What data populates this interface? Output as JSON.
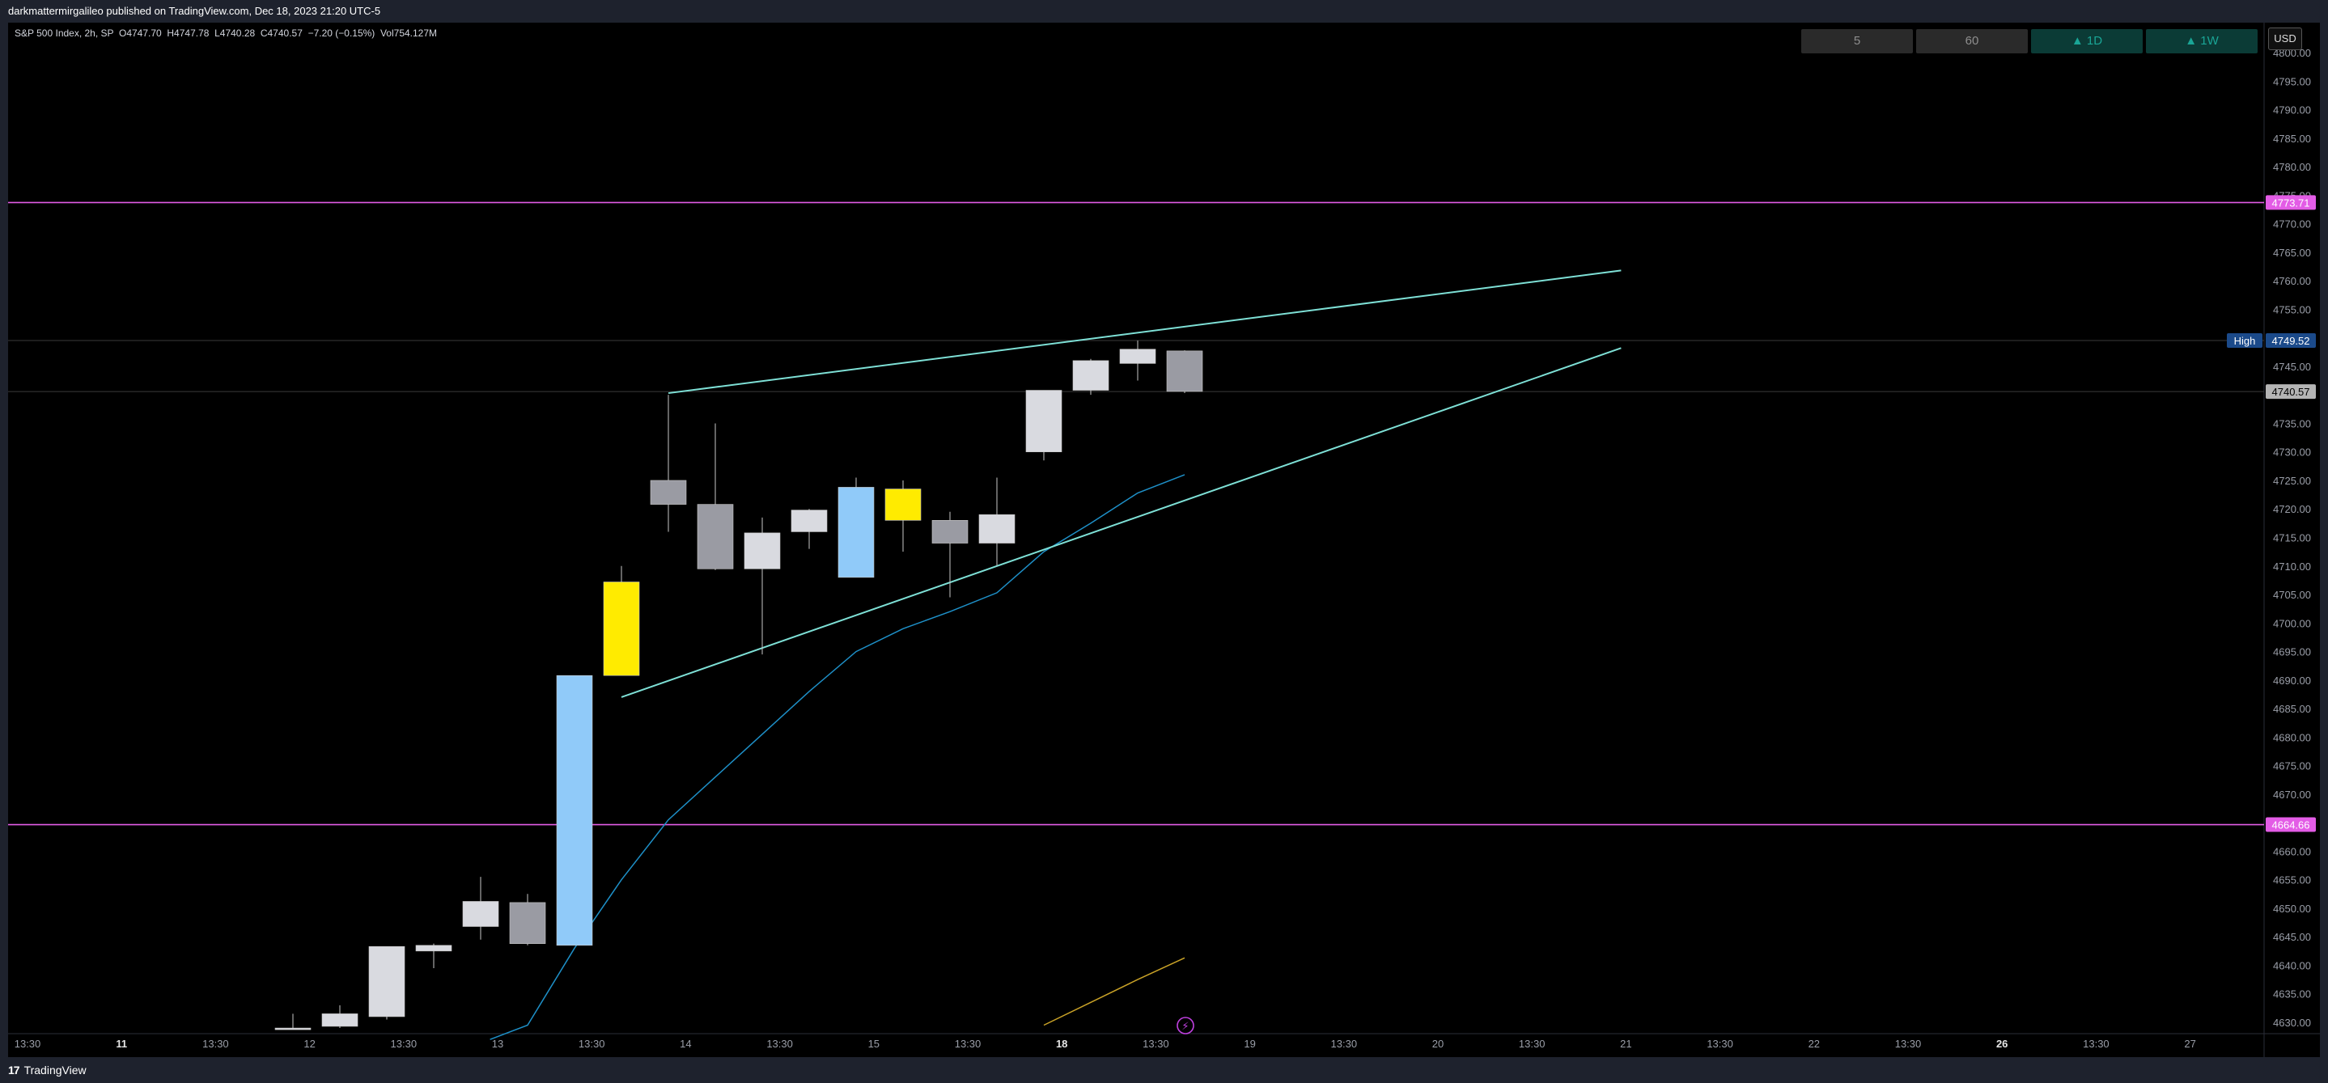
{
  "header": {
    "attribution": "darkmattermirgalileo published on TradingView.com, Dec 18, 2023 21:20 UTC-5"
  },
  "legend": {
    "symbol": "S&P 500 Index, 2h, SP",
    "open": "O4747.70",
    "high": "H4747.78",
    "low": "L4740.28",
    "close": "C4740.57",
    "change": "−7.20 (−0.15%)",
    "volume": "Vol754.127M"
  },
  "toolbar": {
    "timeframes": [
      {
        "label": "5",
        "style": "plain"
      },
      {
        "label": "60",
        "style": "plain"
      },
      {
        "label": "▲ 1D",
        "style": "green"
      },
      {
        "label": "▲ 1W",
        "style": "green"
      }
    ],
    "currency": "USD"
  },
  "footer": {
    "brand_mark": "17",
    "brand_name": "TradingView"
  },
  "colors": {
    "background": "#000000",
    "frame": "#1e222d",
    "candle_up_white": "#d9dae0",
    "candle_grey": "#9a9ba3",
    "candle_blue": "#90caf9",
    "candle_yellow": "#ffeb00",
    "trendline": "#7ee0d6",
    "ma_line": "#1e90c8",
    "volume_line": "#c9a227",
    "horizontal_level": "#e35ce6",
    "high_label_bg": "#1b4a8a",
    "close_label_bg": "#b4b4b4"
  },
  "chart_data": {
    "type": "candlestick",
    "symbol": "S&P 500 Index",
    "interval": "2h",
    "ylim": [
      4627,
      4803
    ],
    "y_ticks": [
      "4800.00",
      "4795.00",
      "4790.00",
      "4785.00",
      "4780.00",
      "4775.00",
      "4770.00",
      "4765.00",
      "4760.00",
      "4755.00",
      "4750.00",
      "4745.00",
      "4740.00",
      "4735.00",
      "4730.00",
      "4725.00",
      "4720.00",
      "4715.00",
      "4710.00",
      "4705.00",
      "4700.00",
      "4695.00",
      "4690.00",
      "4685.00",
      "4680.00",
      "4675.00",
      "4670.00",
      "4665.00",
      "4660.00",
      "4655.00",
      "4650.00",
      "4645.00",
      "4640.00",
      "4635.00",
      "4630.00"
    ],
    "x_ticks": [
      "13:30",
      "11",
      "13:30",
      "12",
      "13:30",
      "13",
      "13:30",
      "14",
      "13:30",
      "15",
      "13:30",
      "18",
      "13:30",
      "19",
      "13:30",
      "20",
      "13:30",
      "21",
      "13:30",
      "22",
      "13:30",
      "26",
      "13:30",
      "27"
    ],
    "x_tick_bold": [
      "11",
      "18",
      "26"
    ],
    "bar_index_range": [
      -9.2,
      33.5
    ],
    "candles": [
      {
        "i": 6,
        "open": 4629.0,
        "high": 4631.5,
        "low": 4629.0,
        "close": 4629.0,
        "color": "white"
      },
      {
        "i": 7,
        "open": 4629.3,
        "high": 4633.0,
        "low": 4629.0,
        "close": 4631.5,
        "color": "white"
      },
      {
        "i": 8,
        "open": 4631.0,
        "high": 4643.3,
        "low": 4630.5,
        "close": 4643.3,
        "color": "white"
      },
      {
        "i": 9,
        "open": 4642.5,
        "high": 4643.8,
        "low": 4639.5,
        "close": 4643.5,
        "color": "white"
      },
      {
        "i": 10,
        "open": 4646.8,
        "high": 4655.5,
        "low": 4644.5,
        "close": 4651.2,
        "color": "white"
      },
      {
        "i": 11,
        "open": 4651.0,
        "high": 4652.5,
        "low": 4643.5,
        "close": 4643.8,
        "color": "grey"
      },
      {
        "i": 12,
        "open": 4643.5,
        "high": 4690.8,
        "low": 4643.5,
        "close": 4690.8,
        "color": "blue"
      },
      {
        "i": 13,
        "open": 4690.8,
        "high": 4710.0,
        "low": 4690.8,
        "close": 4707.2,
        "color": "yellow"
      },
      {
        "i": 14,
        "open": 4725.0,
        "high": 4740.0,
        "low": 4716.0,
        "close": 4720.8,
        "color": "grey"
      },
      {
        "i": 15,
        "open": 4720.8,
        "high": 4735.0,
        "low": 4709.3,
        "close": 4709.5,
        "color": "grey"
      },
      {
        "i": 16,
        "open": 4709.5,
        "high": 4718.5,
        "low": 4694.5,
        "close": 4715.8,
        "color": "white"
      },
      {
        "i": 17,
        "open": 4716.0,
        "high": 4720.0,
        "low": 4713.0,
        "close": 4719.8,
        "color": "white"
      },
      {
        "i": 18,
        "open": 4708.0,
        "high": 4725.5,
        "low": 4708.0,
        "close": 4723.8,
        "color": "blue"
      },
      {
        "i": 19,
        "open": 4723.5,
        "high": 4725.0,
        "low": 4712.5,
        "close": 4718.0,
        "color": "yellow"
      },
      {
        "i": 20,
        "open": 4718.0,
        "high": 4719.5,
        "low": 4704.5,
        "close": 4714.0,
        "color": "grey"
      },
      {
        "i": 21,
        "open": 4714.0,
        "high": 4725.5,
        "low": 4710.0,
        "close": 4719.0,
        "color": "white"
      },
      {
        "i": 22,
        "open": 4730.0,
        "high": 4740.8,
        "low": 4728.5,
        "close": 4740.8,
        "color": "white"
      },
      {
        "i": 23,
        "open": 4740.8,
        "high": 4746.3,
        "low": 4740.0,
        "close": 4746.0,
        "color": "white"
      },
      {
        "i": 24,
        "open": 4745.5,
        "high": 4749.5,
        "low": 4742.5,
        "close": 4748.0,
        "color": "white"
      },
      {
        "i": 25,
        "open": 4747.7,
        "high": 4747.8,
        "low": 4740.3,
        "close": 4740.6,
        "color": "grey"
      }
    ],
    "trendlines": [
      {
        "name": "upper",
        "points": [
          [
            14,
            4740.3
          ],
          [
            34.3,
            4761.8
          ]
        ]
      },
      {
        "name": "lower",
        "points": [
          [
            13,
            4687.0
          ],
          [
            34.3,
            4748.2
          ]
        ]
      }
    ],
    "moving_average": {
      "points": [
        [
          10.2,
          4627
        ],
        [
          11,
          4629.5
        ],
        [
          12,
          4643
        ],
        [
          13,
          4655
        ],
        [
          14,
          4665.5
        ],
        [
          15,
          4673
        ],
        [
          16,
          4680.5
        ],
        [
          17,
          4688
        ],
        [
          18,
          4695
        ],
        [
          19,
          4699
        ],
        [
          20,
          4702
        ],
        [
          21,
          4705.3
        ],
        [
          22,
          4712.5
        ],
        [
          23,
          4717.5
        ],
        [
          24,
          4722.8
        ],
        [
          25,
          4726
        ]
      ]
    },
    "volume_overlay": {
      "points": [
        [
          22,
          4629.5
        ],
        [
          23,
          4633.5
        ],
        [
          24,
          4637.5
        ],
        [
          25,
          4641.3
        ]
      ]
    },
    "horizontal_levels": [
      {
        "value": 4773.71,
        "label": "4773.71"
      },
      {
        "value": 4664.66,
        "label": "4664.66"
      }
    ],
    "price_markers": [
      {
        "value": 4749.52,
        "label": "4749.52",
        "tag": "High"
      },
      {
        "value": 4740.57,
        "label": "4740.57",
        "tag": ""
      }
    ],
    "event_icon": {
      "i": 25,
      "value": 4630.0,
      "symbol": "⚡"
    }
  }
}
